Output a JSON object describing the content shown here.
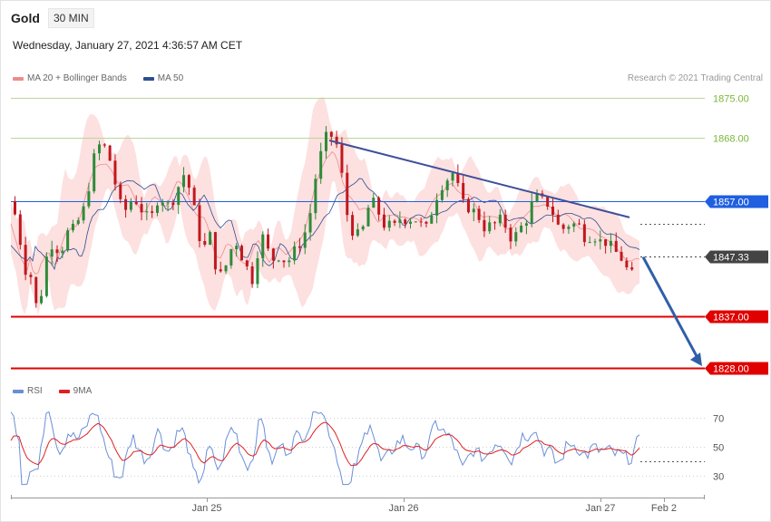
{
  "header": {
    "instrument": "Gold",
    "timeframe": "30 MIN",
    "datetime": "Wednesday, January 27, 2021 4:36:57 AM CET"
  },
  "legend": {
    "ma20": "MA 20 + Bollinger Bands",
    "ma50": "MA 50",
    "ma20_color": "#f08b8b",
    "ma50_color": "#2b4e8f",
    "credit": "Research © 2021 Trading Central"
  },
  "rsi_legend": {
    "rsi": "RSI",
    "ma9": "9MA",
    "rsi_color": "#6a8fd8",
    "ma9_color": "#e02020"
  },
  "chart_data": {
    "type": "candlestick",
    "price_range": [
      1828,
      1875
    ],
    "levels": [
      {
        "value": 1875.0,
        "label": "1875.00",
        "kind": "resistance-far",
        "color": "#79b83a"
      },
      {
        "value": 1868.0,
        "label": "1868.00",
        "kind": "resistance",
        "color": "#79b83a"
      },
      {
        "value": 1857.0,
        "label": "1857.00",
        "kind": "pivot",
        "color": "#1f5fe0"
      },
      {
        "value": 1847.33,
        "label": "1847.33",
        "kind": "last-price",
        "color": "#444444"
      },
      {
        "value": 1837.0,
        "label": "1837.00",
        "kind": "support",
        "color": "#e00000"
      },
      {
        "value": 1828.0,
        "label": "1828.00",
        "kind": "support-far",
        "color": "#e00000"
      }
    ],
    "x_ticks": [
      "Jan 25",
      "Jan 26",
      "Jan 27",
      "Feb 2"
    ],
    "trendline": {
      "from": 1867.6,
      "to": 1854.2,
      "color": "#3d4f9a"
    },
    "forecast_arrow": {
      "from": 1847.3,
      "to": 1828.0,
      "color": "#2f5fa8"
    },
    "rsi_ticks": [
      "70",
      "50",
      "30"
    ],
    "rsi_range": [
      20,
      80
    ],
    "candle_count": 118,
    "candle_up_color": "#2e8b3a",
    "candle_down_color": "#c0181e",
    "band_color": "#fde0e0",
    "gridlines": false
  }
}
